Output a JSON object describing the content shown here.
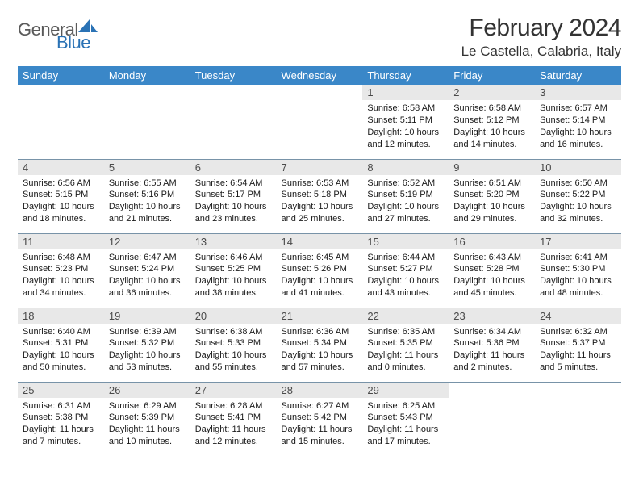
{
  "branding": {
    "word1": "General",
    "word2": "Blue",
    "icon_color": "#2a72b5",
    "text_gray": "#5a5a5a"
  },
  "header": {
    "month_title": "February 2024",
    "location": "Le Castella, Calabria, Italy"
  },
  "colors": {
    "header_bg": "#3a87c8",
    "daynum_bg": "#e8e8e8",
    "row_border": "#7893a8"
  },
  "day_labels": [
    "Sunday",
    "Monday",
    "Tuesday",
    "Wednesday",
    "Thursday",
    "Friday",
    "Saturday"
  ],
  "weeks": [
    [
      {
        "empty": true
      },
      {
        "empty": true
      },
      {
        "empty": true
      },
      {
        "empty": true
      },
      {
        "num": "1",
        "sunrise": "Sunrise: 6:58 AM",
        "sunset": "Sunset: 5:11 PM",
        "daylight1": "Daylight: 10 hours",
        "daylight2": "and 12 minutes."
      },
      {
        "num": "2",
        "sunrise": "Sunrise: 6:58 AM",
        "sunset": "Sunset: 5:12 PM",
        "daylight1": "Daylight: 10 hours",
        "daylight2": "and 14 minutes."
      },
      {
        "num": "3",
        "sunrise": "Sunrise: 6:57 AM",
        "sunset": "Sunset: 5:14 PM",
        "daylight1": "Daylight: 10 hours",
        "daylight2": "and 16 minutes."
      }
    ],
    [
      {
        "num": "4",
        "sunrise": "Sunrise: 6:56 AM",
        "sunset": "Sunset: 5:15 PM",
        "daylight1": "Daylight: 10 hours",
        "daylight2": "and 18 minutes."
      },
      {
        "num": "5",
        "sunrise": "Sunrise: 6:55 AM",
        "sunset": "Sunset: 5:16 PM",
        "daylight1": "Daylight: 10 hours",
        "daylight2": "and 21 minutes."
      },
      {
        "num": "6",
        "sunrise": "Sunrise: 6:54 AM",
        "sunset": "Sunset: 5:17 PM",
        "daylight1": "Daylight: 10 hours",
        "daylight2": "and 23 minutes."
      },
      {
        "num": "7",
        "sunrise": "Sunrise: 6:53 AM",
        "sunset": "Sunset: 5:18 PM",
        "daylight1": "Daylight: 10 hours",
        "daylight2": "and 25 minutes."
      },
      {
        "num": "8",
        "sunrise": "Sunrise: 6:52 AM",
        "sunset": "Sunset: 5:19 PM",
        "daylight1": "Daylight: 10 hours",
        "daylight2": "and 27 minutes."
      },
      {
        "num": "9",
        "sunrise": "Sunrise: 6:51 AM",
        "sunset": "Sunset: 5:20 PM",
        "daylight1": "Daylight: 10 hours",
        "daylight2": "and 29 minutes."
      },
      {
        "num": "10",
        "sunrise": "Sunrise: 6:50 AM",
        "sunset": "Sunset: 5:22 PM",
        "daylight1": "Daylight: 10 hours",
        "daylight2": "and 32 minutes."
      }
    ],
    [
      {
        "num": "11",
        "sunrise": "Sunrise: 6:48 AM",
        "sunset": "Sunset: 5:23 PM",
        "daylight1": "Daylight: 10 hours",
        "daylight2": "and 34 minutes."
      },
      {
        "num": "12",
        "sunrise": "Sunrise: 6:47 AM",
        "sunset": "Sunset: 5:24 PM",
        "daylight1": "Daylight: 10 hours",
        "daylight2": "and 36 minutes."
      },
      {
        "num": "13",
        "sunrise": "Sunrise: 6:46 AM",
        "sunset": "Sunset: 5:25 PM",
        "daylight1": "Daylight: 10 hours",
        "daylight2": "and 38 minutes."
      },
      {
        "num": "14",
        "sunrise": "Sunrise: 6:45 AM",
        "sunset": "Sunset: 5:26 PM",
        "daylight1": "Daylight: 10 hours",
        "daylight2": "and 41 minutes."
      },
      {
        "num": "15",
        "sunrise": "Sunrise: 6:44 AM",
        "sunset": "Sunset: 5:27 PM",
        "daylight1": "Daylight: 10 hours",
        "daylight2": "and 43 minutes."
      },
      {
        "num": "16",
        "sunrise": "Sunrise: 6:43 AM",
        "sunset": "Sunset: 5:28 PM",
        "daylight1": "Daylight: 10 hours",
        "daylight2": "and 45 minutes."
      },
      {
        "num": "17",
        "sunrise": "Sunrise: 6:41 AM",
        "sunset": "Sunset: 5:30 PM",
        "daylight1": "Daylight: 10 hours",
        "daylight2": "and 48 minutes."
      }
    ],
    [
      {
        "num": "18",
        "sunrise": "Sunrise: 6:40 AM",
        "sunset": "Sunset: 5:31 PM",
        "daylight1": "Daylight: 10 hours",
        "daylight2": "and 50 minutes."
      },
      {
        "num": "19",
        "sunrise": "Sunrise: 6:39 AM",
        "sunset": "Sunset: 5:32 PM",
        "daylight1": "Daylight: 10 hours",
        "daylight2": "and 53 minutes."
      },
      {
        "num": "20",
        "sunrise": "Sunrise: 6:38 AM",
        "sunset": "Sunset: 5:33 PM",
        "daylight1": "Daylight: 10 hours",
        "daylight2": "and 55 minutes."
      },
      {
        "num": "21",
        "sunrise": "Sunrise: 6:36 AM",
        "sunset": "Sunset: 5:34 PM",
        "daylight1": "Daylight: 10 hours",
        "daylight2": "and 57 minutes."
      },
      {
        "num": "22",
        "sunrise": "Sunrise: 6:35 AM",
        "sunset": "Sunset: 5:35 PM",
        "daylight1": "Daylight: 11 hours",
        "daylight2": "and 0 minutes."
      },
      {
        "num": "23",
        "sunrise": "Sunrise: 6:34 AM",
        "sunset": "Sunset: 5:36 PM",
        "daylight1": "Daylight: 11 hours",
        "daylight2": "and 2 minutes."
      },
      {
        "num": "24",
        "sunrise": "Sunrise: 6:32 AM",
        "sunset": "Sunset: 5:37 PM",
        "daylight1": "Daylight: 11 hours",
        "daylight2": "and 5 minutes."
      }
    ],
    [
      {
        "num": "25",
        "sunrise": "Sunrise: 6:31 AM",
        "sunset": "Sunset: 5:38 PM",
        "daylight1": "Daylight: 11 hours",
        "daylight2": "and 7 minutes."
      },
      {
        "num": "26",
        "sunrise": "Sunrise: 6:29 AM",
        "sunset": "Sunset: 5:39 PM",
        "daylight1": "Daylight: 11 hours",
        "daylight2": "and 10 minutes."
      },
      {
        "num": "27",
        "sunrise": "Sunrise: 6:28 AM",
        "sunset": "Sunset: 5:41 PM",
        "daylight1": "Daylight: 11 hours",
        "daylight2": "and 12 minutes."
      },
      {
        "num": "28",
        "sunrise": "Sunrise: 6:27 AM",
        "sunset": "Sunset: 5:42 PM",
        "daylight1": "Daylight: 11 hours",
        "daylight2": "and 15 minutes."
      },
      {
        "num": "29",
        "sunrise": "Sunrise: 6:25 AM",
        "sunset": "Sunset: 5:43 PM",
        "daylight1": "Daylight: 11 hours",
        "daylight2": "and 17 minutes."
      },
      {
        "empty": true
      },
      {
        "empty": true
      }
    ]
  ]
}
